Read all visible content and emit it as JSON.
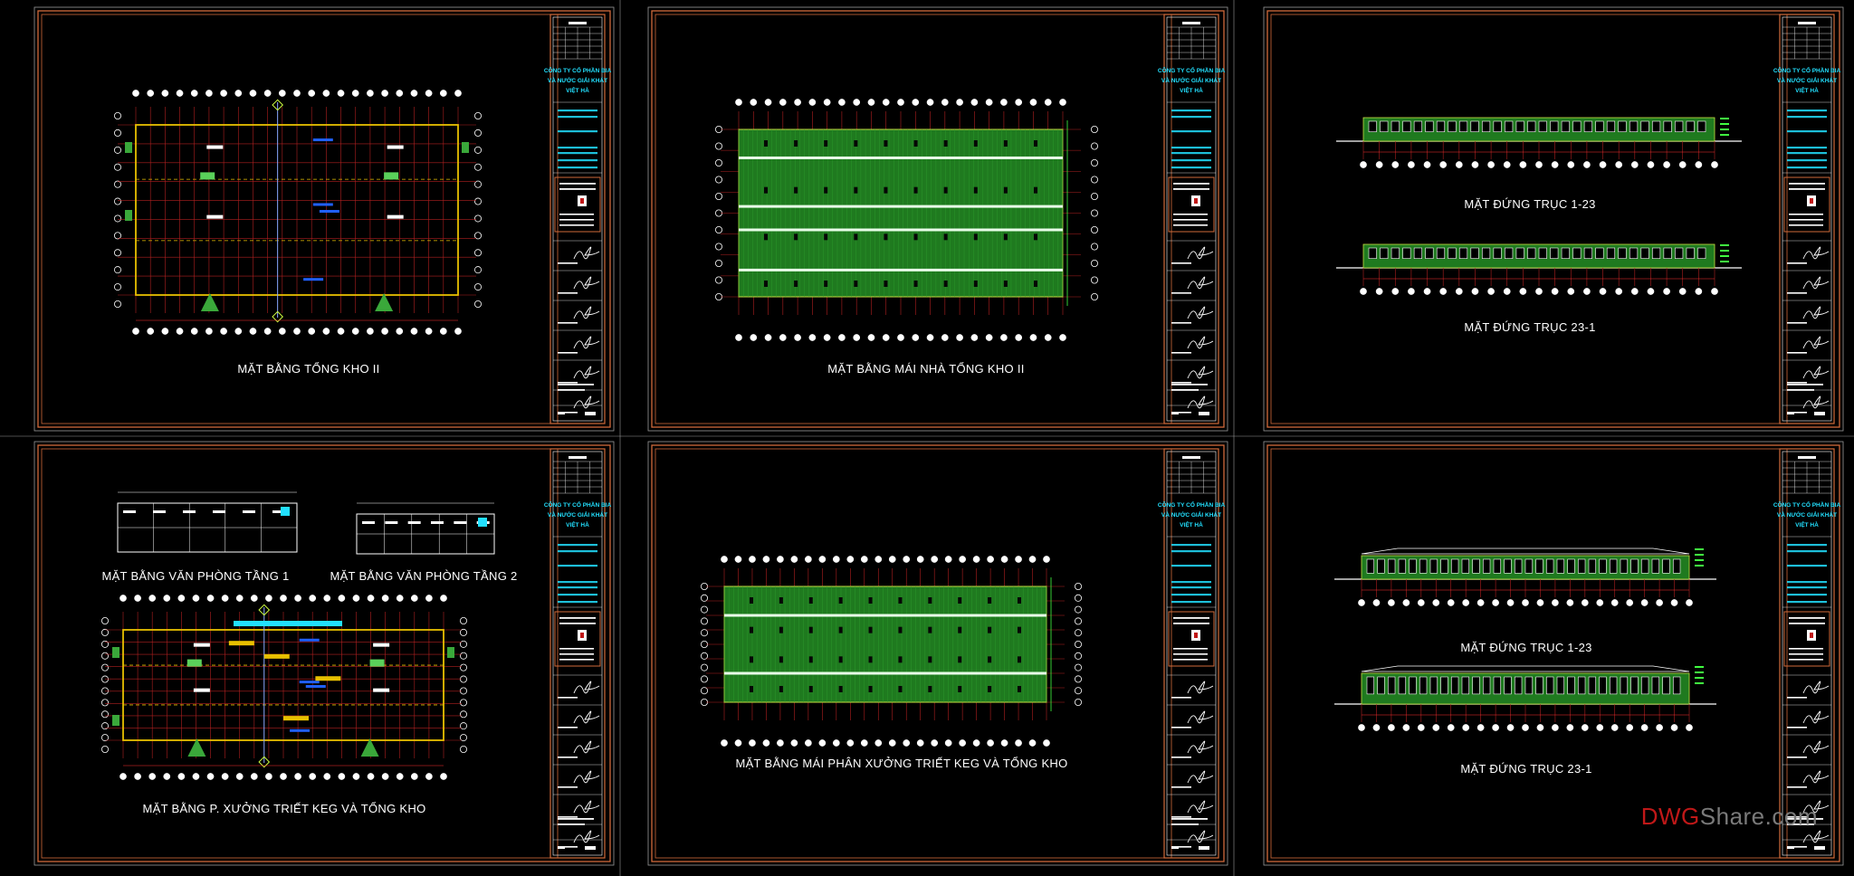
{
  "sheets": [
    {
      "title": "MẶT BẰNG TỔNG KHO II",
      "type": "plan"
    },
    {
      "title": "MẶT BẰNG MÁI NHÀ TỔNG KHO II",
      "type": "roof"
    },
    {
      "type": "elevation",
      "titles": [
        "MẶT ĐỨNG TRỤC 1-23",
        "MẶT ĐỨNG TRỤC 23-1"
      ]
    },
    {
      "type": "office",
      "titles": [
        "MẶT BẰNG VĂN PHÒNG TẦNG 1",
        "MẶT BẰNG VĂN PHÒNG TẦNG 2",
        "MẶT BẰNG P.  XƯỞNG TRIẾT KEG VÀ TỔNG KHO"
      ]
    },
    {
      "title": "MẶT BẰNG MÁI PHÂN XƯỞNG TRIẾT KEG VÀ TỔNG KHO",
      "type": "roof2"
    },
    {
      "type": "elevation2",
      "titles": [
        "MẶT ĐỨNG TRỤC 1-23",
        "MẶT ĐỨNG TRỤC 23-1"
      ]
    }
  ],
  "title_block": {
    "company_lines": [
      "CÔNG TY CỔ PHẦN BIA",
      "VÀ NƯỚC GIẢI KHÁT",
      "VIỆT HÀ"
    ]
  },
  "watermark": {
    "part1": "DWG",
    "part2": "Share.com"
  },
  "colors": {
    "background": "#000000",
    "frame": "#d06a3a",
    "grid": "#b02020",
    "wall": "#e8c000",
    "roof": "#1f7a1f",
    "blue": "#2060ff",
    "cyan": "#22e0ff"
  }
}
